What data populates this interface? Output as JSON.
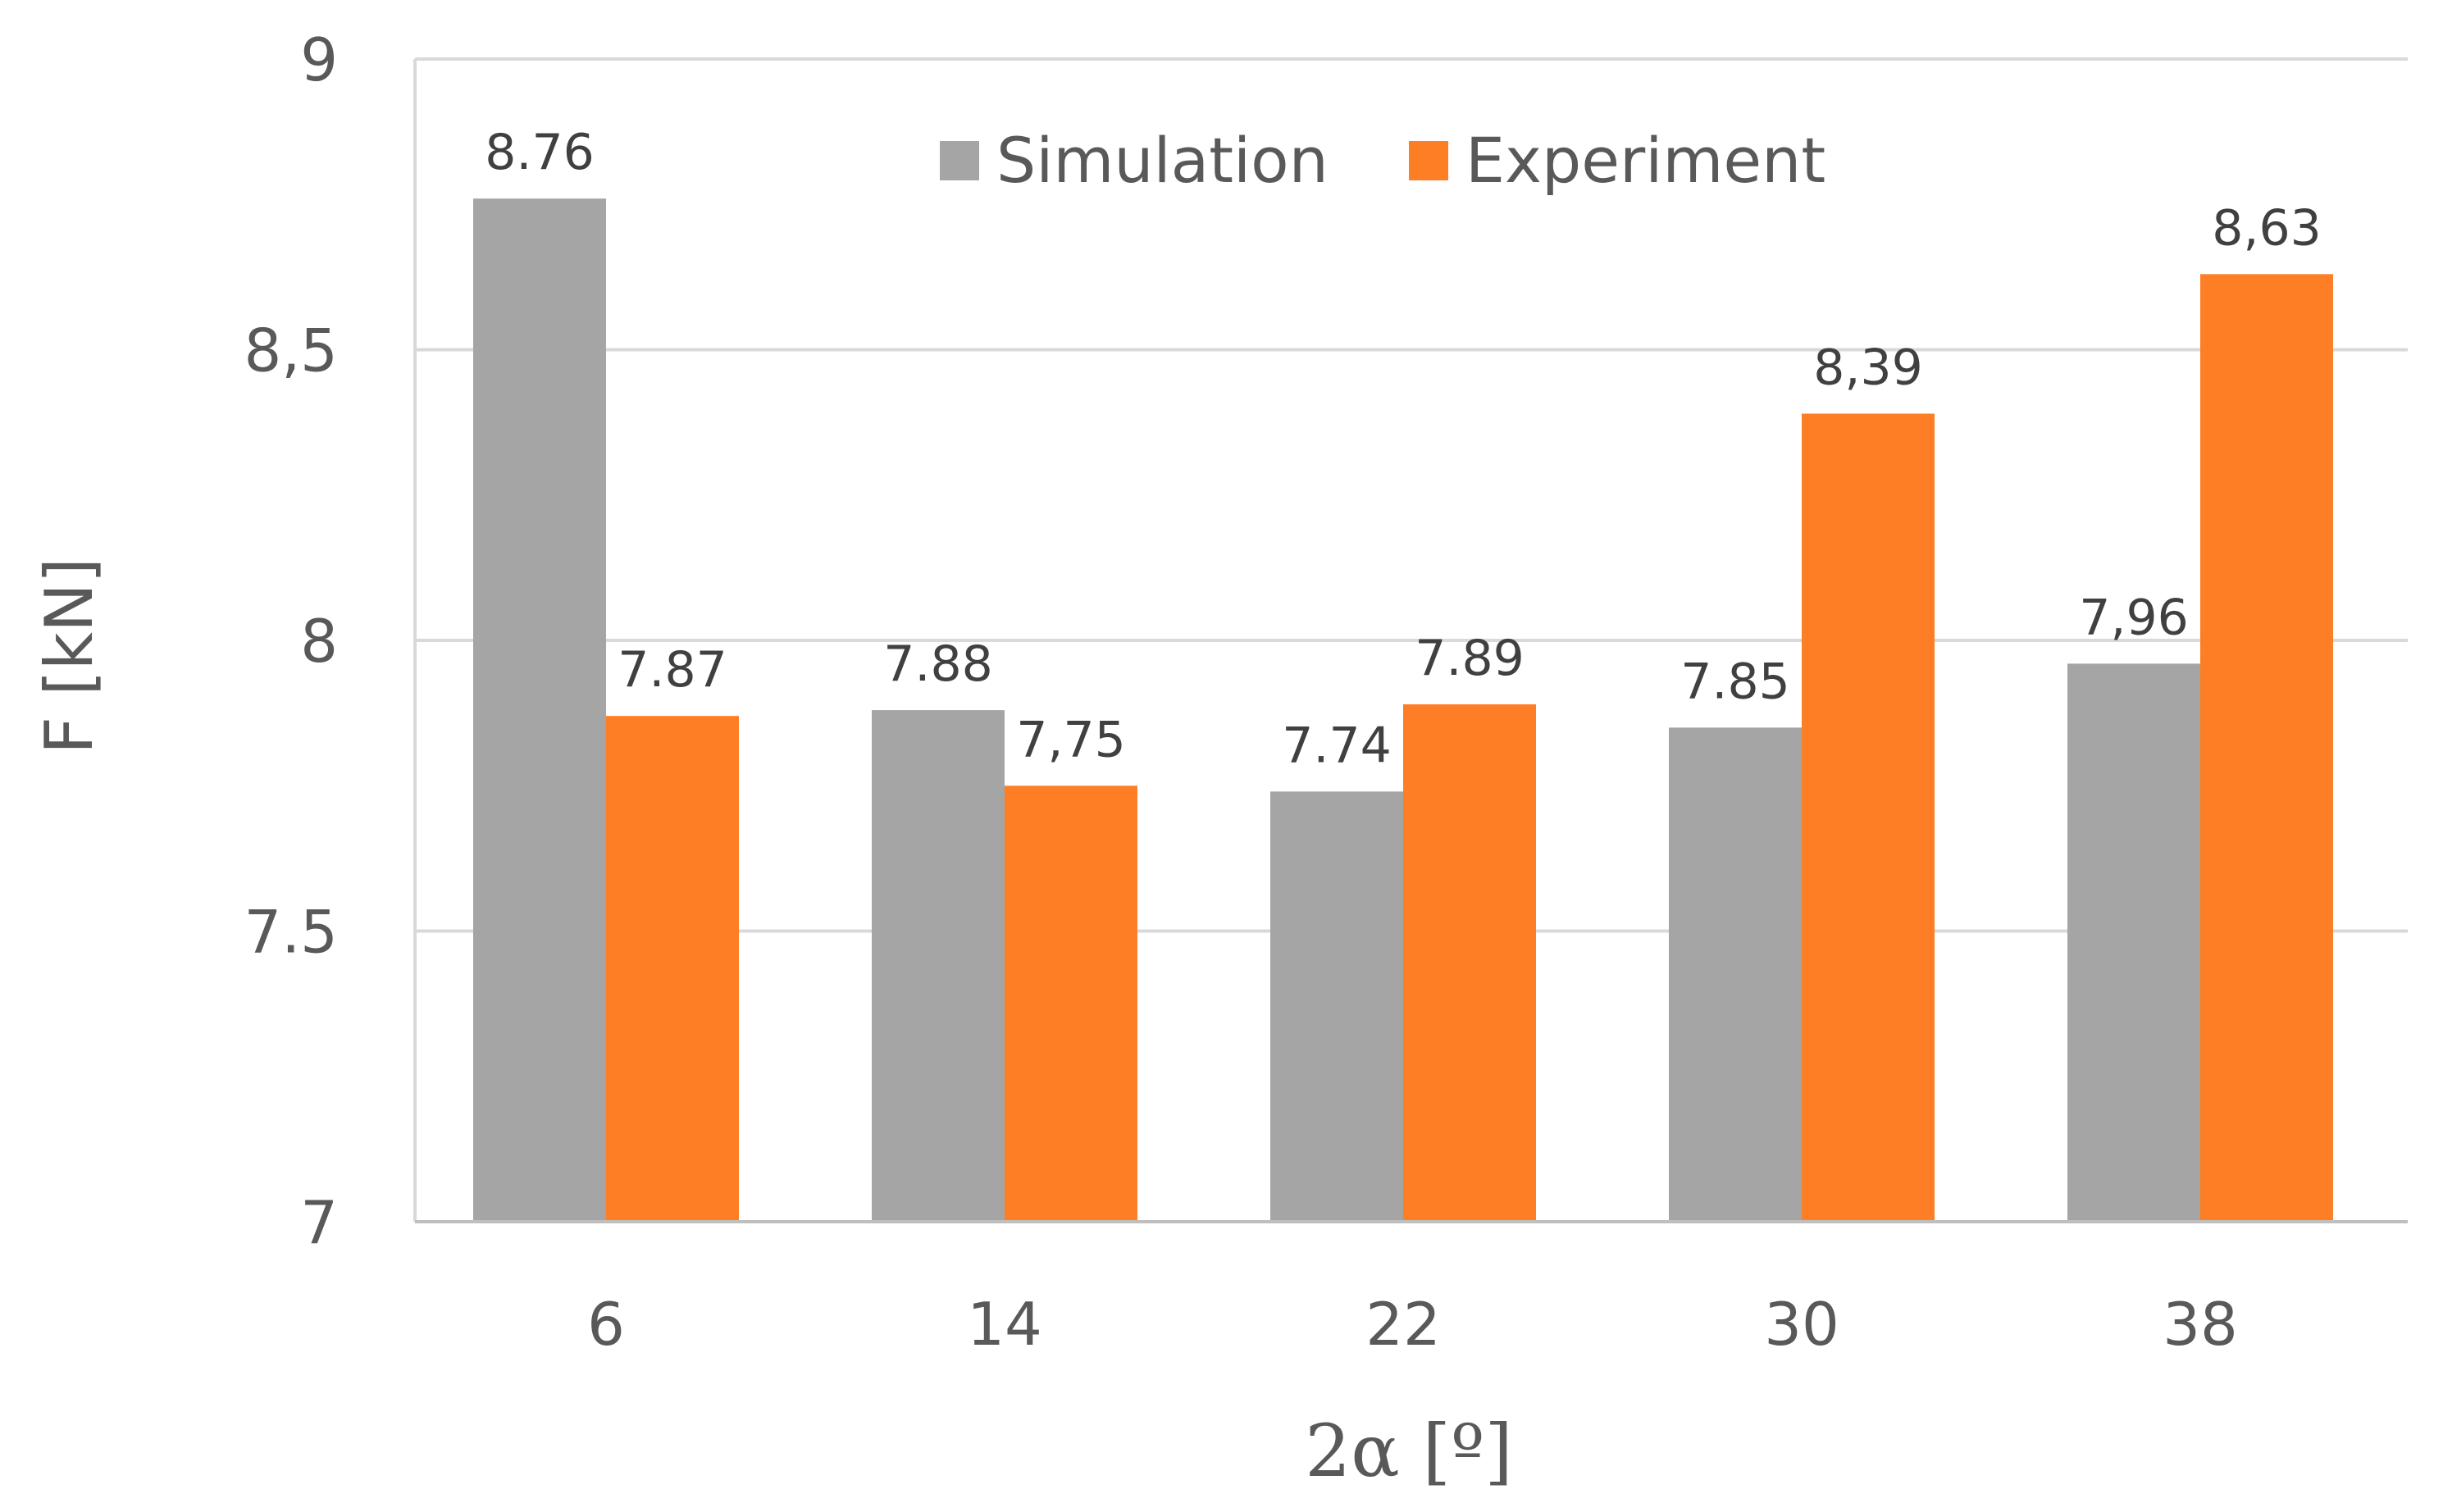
{
  "chart_data": {
    "type": "bar",
    "title": "",
    "xlabel": "2α [º]",
    "ylabel": "F [kN]",
    "ylim": [
      7,
      9
    ],
    "yticks": [
      7,
      7.5,
      8,
      8.5,
      9
    ],
    "ytick_labels": [
      "7",
      "7.5",
      "8",
      "8,5",
      "9"
    ],
    "categories": [
      "6",
      "14",
      "22",
      "30",
      "38"
    ],
    "grid": true,
    "legend_position": "top-center",
    "series": [
      {
        "name": "Simulation",
        "color": "#a5a5a5",
        "values": [
          8.76,
          7.88,
          7.74,
          7.85,
          7.96
        ],
        "labels": [
          "8.76",
          "7.88",
          "7.74",
          "7.85",
          "7,96"
        ]
      },
      {
        "name": "Experiment",
        "color": "#fd7e25",
        "values": [
          7.87,
          7.75,
          7.89,
          8.39,
          8.63
        ],
        "labels": [
          "7.87",
          "7,75",
          "7.89",
          "8,39",
          "8,63"
        ]
      }
    ]
  }
}
